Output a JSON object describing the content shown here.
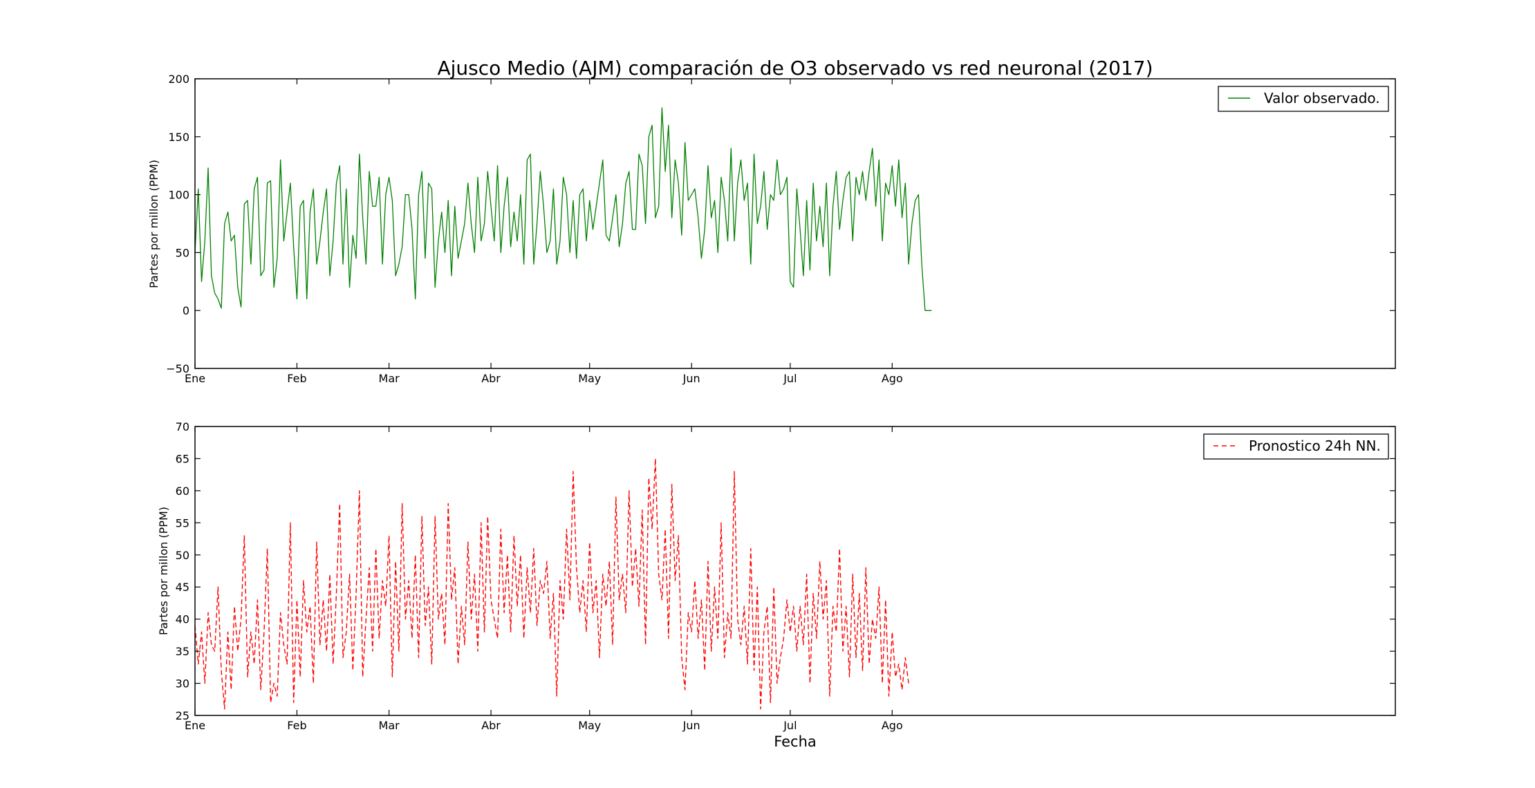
{
  "chart_data": [
    {
      "type": "line",
      "title": "Ajusco Medio (AJM) comparación de O3 observado vs red neuronal (2017)",
      "xlabel": "",
      "ylabel": "Partes por millon (PPM)",
      "x_ticks": [
        "Ene",
        "Feb",
        "Mar",
        "Abr",
        "May",
        "Jun",
        "Jul",
        "Ago"
      ],
      "x_range_days": [
        0,
        365
      ],
      "ylim": [
        -50,
        200
      ],
      "y_ticks": [
        -50,
        0,
        50,
        100,
        150,
        200
      ],
      "grid": false,
      "legend_position": "top-right",
      "series": [
        {
          "name": "Valor observado.",
          "color": "#008000",
          "style": "solid",
          "sampling": "daily (approximate)",
          "x_start": "2017-01-01",
          "y_values": [
            50,
            105,
            25,
            60,
            123,
            30,
            15,
            10,
            2,
            75,
            85,
            60,
            65,
            20,
            3,
            92,
            95,
            40,
            105,
            115,
            30,
            35,
            110,
            112,
            20,
            45,
            130,
            60,
            85,
            110,
            55,
            10,
            90,
            95,
            10,
            85,
            105,
            40,
            60,
            85,
            105,
            30,
            60,
            110,
            125,
            40,
            105,
            20,
            65,
            45,
            135,
            80,
            40,
            120,
            90,
            90,
            115,
            40,
            100,
            115,
            95,
            30,
            40,
            55,
            100,
            100,
            70,
            10,
            100,
            120,
            45,
            110,
            105,
            20,
            60,
            85,
            50,
            95,
            30,
            90,
            45,
            60,
            75,
            110,
            75,
            50,
            115,
            60,
            75,
            120,
            90,
            60,
            125,
            50,
            90,
            115,
            55,
            85,
            60,
            100,
            40,
            130,
            135,
            40,
            75,
            120,
            90,
            50,
            60,
            105,
            40,
            60,
            115,
            100,
            50,
            95,
            45,
            100,
            105,
            60,
            95,
            70,
            90,
            110,
            130,
            65,
            60,
            80,
            100,
            55,
            75,
            110,
            120,
            70,
            70,
            135,
            125,
            75,
            150,
            160,
            80,
            90,
            175,
            120,
            160,
            80,
            130,
            110,
            65,
            145,
            95,
            100,
            105,
            80,
            45,
            70,
            125,
            80,
            95,
            50,
            115,
            95,
            60,
            140,
            60,
            110,
            130,
            95,
            110,
            40,
            135,
            75,
            90,
            120,
            70,
            100,
            95,
            130,
            100,
            105,
            115,
            25,
            20,
            105,
            70,
            30,
            95,
            35,
            110,
            60,
            90,
            55,
            110,
            30,
            90,
            120,
            70,
            95,
            115,
            120,
            60,
            115,
            100,
            120,
            95,
            120,
            140,
            90,
            130,
            60,
            110,
            100,
            125,
            90,
            130,
            80,
            110,
            40,
            75,
            95,
            100,
            40,
            0,
            0,
            0
          ]
        }
      ]
    },
    {
      "type": "line",
      "title": "",
      "xlabel": "Fecha",
      "ylabel": "Partes por millon (PPM)",
      "x_ticks": [
        "Ene",
        "Feb",
        "Mar",
        "Abr",
        "May",
        "Jun",
        "Jul",
        "Ago"
      ],
      "x_range_days": [
        0,
        365
      ],
      "ylim": [
        25,
        70
      ],
      "y_ticks": [
        25,
        30,
        35,
        40,
        45,
        50,
        55,
        60,
        65,
        70
      ],
      "grid": false,
      "legend_position": "top-right",
      "series": [
        {
          "name": "Pronostico 24h NN.",
          "color": "#ff0000",
          "style": "dashed",
          "sampling": "daily (approximate)",
          "x_start": "2017-01-01",
          "y_values": [
            39,
            33,
            38,
            30,
            41,
            36,
            35,
            45,
            32,
            26,
            38,
            29,
            42,
            35,
            40,
            53,
            31,
            38,
            33,
            43,
            29,
            38,
            51,
            27,
            30,
            28,
            41,
            36,
            33,
            55,
            27,
            43,
            31,
            46,
            38,
            42,
            30,
            52,
            36,
            43,
            35,
            47,
            33,
            44,
            58,
            34,
            38,
            47,
            32,
            44,
            60,
            31,
            40,
            48,
            35,
            51,
            37,
            46,
            42,
            53,
            31,
            49,
            35,
            58,
            40,
            46,
            37,
            50,
            34,
            56,
            39,
            45,
            33,
            56,
            40,
            44,
            36,
            58,
            43,
            48,
            33,
            42,
            36,
            52,
            40,
            47,
            35,
            55,
            38,
            56,
            43,
            40,
            37,
            54,
            41,
            50,
            38,
            53,
            42,
            50,
            37,
            48,
            41,
            51,
            39,
            46,
            44,
            49,
            37,
            44,
            28,
            46,
            40,
            54,
            43,
            63,
            48,
            41,
            46,
            38,
            52,
            41,
            46,
            34,
            47,
            42,
            49,
            36,
            59,
            43,
            47,
            41,
            60,
            45,
            51,
            42,
            57,
            36,
            62,
            54,
            65,
            47,
            43,
            54,
            37,
            61,
            46,
            53,
            34,
            29,
            41,
            38,
            46,
            37,
            43,
            32,
            49,
            35,
            45,
            37,
            55,
            34,
            41,
            37,
            63,
            40,
            36,
            42,
            33,
            51,
            32,
            45,
            26,
            38,
            42,
            27,
            45,
            30,
            34,
            37,
            43,
            38,
            42,
            35,
            42,
            36,
            47,
            30,
            44,
            37,
            49,
            40,
            46,
            28,
            42,
            38,
            51,
            35,
            42,
            31,
            47,
            34,
            44,
            32,
            48,
            33,
            40,
            37,
            45,
            30,
            43,
            28,
            38,
            31,
            33,
            29,
            34,
            30
          ]
        }
      ]
    }
  ]
}
